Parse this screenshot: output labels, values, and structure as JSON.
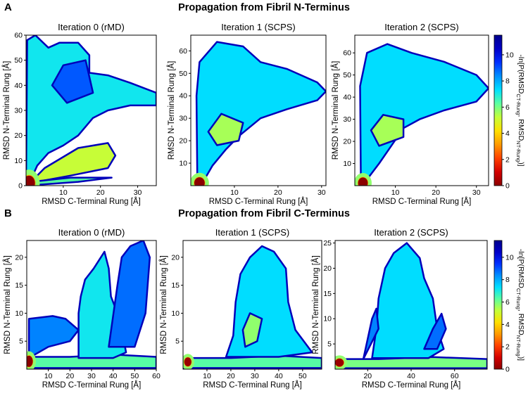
{
  "figure": {
    "rows": [
      {
        "label": "A",
        "title": "Propagation from Fibril N-Terminus"
      },
      {
        "label": "B",
        "title": "Propagation from Fibril C-Terminus"
      }
    ],
    "colorbar": {
      "label_parts": [
        "-ln[P(RMSD",
        "CT-Rung",
        ", RMSD",
        "NT-Rung",
        ")]"
      ],
      "ticks": [
        0,
        2,
        4,
        6,
        8,
        10
      ],
      "range": [
        0,
        11.5
      ],
      "colors": [
        "#8b0000",
        "#d40000",
        "#ff4000",
        "#ff9a00",
        "#ffe000",
        "#c4ff3a",
        "#5cffa0",
        "#00e0ff",
        "#0090ff",
        "#0030ff",
        "#0000c8",
        "#00008b"
      ]
    }
  },
  "chart_data": [
    {
      "type": "heatmap",
      "row": "A",
      "title": "Iteration 0 (rMD)",
      "xlabel": "RMSD C-Terminal Rung [Å]",
      "ylabel": "RMSD N-Terminal Rung [Å]",
      "xlim": [
        0,
        35
      ],
      "ylim": [
        0,
        60
      ],
      "xticks": [
        10,
        20,
        30
      ],
      "yticks": [
        0,
        10,
        20,
        30,
        40,
        50,
        60
      ],
      "regions": [
        {
          "kind": "wedge",
          "points": [
            [
              0,
              0
            ],
            [
              0.3,
              58
            ],
            [
              2.5,
              60
            ],
            [
              6,
              55
            ],
            [
              9,
              57
            ],
            [
              14,
              57
            ],
            [
              17,
              52
            ],
            [
              17,
              45
            ],
            [
              22,
              44
            ],
            [
              28,
              41
            ],
            [
              35,
              37
            ],
            [
              35,
              32
            ],
            [
              28,
              32
            ],
            [
              22,
              30
            ],
            [
              18,
              27
            ],
            [
              14,
              20
            ],
            [
              10,
              16
            ],
            [
              6,
              13
            ],
            [
              3,
              8
            ],
            [
              1.5,
              3
            ]
          ],
          "density": 0.62
        },
        {
          "kind": "arm",
          "points": [
            [
              1,
              1
            ],
            [
              12,
              4
            ],
            [
              22,
              7
            ],
            [
              24,
              12
            ],
            [
              22,
              17
            ],
            [
              14,
              15
            ],
            [
              5,
              7
            ]
          ],
          "density": 0.45
        },
        {
          "kind": "floor",
          "points": [
            [
              0,
              0
            ],
            [
              14,
              1.5
            ],
            [
              23,
              3.2
            ],
            [
              12,
              3.2
            ],
            [
              3,
              1.8
            ]
          ],
          "density": 0.55
        },
        {
          "kind": "cluster",
          "points": [
            [
              11,
              33
            ],
            [
              18,
              37
            ],
            [
              16,
              50
            ],
            [
              10,
              48
            ],
            [
              7,
              40
            ]
          ],
          "density": 0.78
        },
        {
          "kind": "hot",
          "center": [
            0.8,
            1.0
          ],
          "radius": [
            1.6,
            3.0
          ],
          "value": 0.0
        }
      ]
    },
    {
      "type": "heatmap",
      "row": "A",
      "title": "Iteration 1 (SCPS)",
      "xlabel": "RMSD C-Terminal Rung [Å]",
      "ylabel": "RMSD N-Terminal Rung [Å]",
      "xlim": [
        0,
        31
      ],
      "ylim": [
        0,
        67
      ],
      "xticks": [
        10,
        20,
        30
      ],
      "yticks": [
        10,
        20,
        30,
        40,
        50,
        60
      ],
      "regions": [
        {
          "kind": "wedge",
          "points": [
            [
              1.5,
              2
            ],
            [
              1.3,
              40
            ],
            [
              2,
              55
            ],
            [
              6,
              64
            ],
            [
              12,
              62
            ],
            [
              16,
              55
            ],
            [
              22,
              52
            ],
            [
              29,
              46
            ],
            [
              31,
              42
            ],
            [
              29,
              38
            ],
            [
              22,
              34
            ],
            [
              16,
              30
            ],
            [
              11,
              22
            ],
            [
              8,
              16
            ],
            [
              5,
              9
            ],
            [
              3.5,
              4
            ]
          ],
          "density": 0.64
        },
        {
          "kind": "cluster",
          "points": [
            [
              6,
              18
            ],
            [
              11,
              20
            ],
            [
              12,
              28
            ],
            [
              7,
              32
            ],
            [
              4,
              24
            ]
          ],
          "density": 0.48
        },
        {
          "kind": "hot",
          "center": [
            2.0,
            1.2
          ],
          "radius": [
            1.2,
            2.5
          ],
          "value": 0.0
        }
      ]
    },
    {
      "type": "heatmap",
      "row": "A",
      "title": "Iteration 2 (SCPS)",
      "xlabel": "RMSD C-Terminal Rung [Å]",
      "ylabel": "RMSD N-Terminal Rung [Å]",
      "xlim": [
        0,
        33
      ],
      "ylim": [
        0,
        68
      ],
      "xticks": [
        10,
        20,
        30
      ],
      "yticks": [
        10,
        20,
        30,
        40,
        50,
        60
      ],
      "regions": [
        {
          "kind": "wedge",
          "points": [
            [
              1.5,
              2
            ],
            [
              1.3,
              45
            ],
            [
              3,
              60
            ],
            [
              8,
              64
            ],
            [
              14,
              60
            ],
            [
              22,
              56
            ],
            [
              30,
              50
            ],
            [
              33,
              44
            ],
            [
              30,
              38
            ],
            [
              22,
              34
            ],
            [
              16,
              30
            ],
            [
              12,
              26
            ],
            [
              9,
              18
            ],
            [
              6,
              10
            ],
            [
              3.5,
              4
            ]
          ],
          "density": 0.64
        },
        {
          "kind": "cluster",
          "points": [
            [
              6,
              18
            ],
            [
              12,
              22
            ],
            [
              12,
              30
            ],
            [
              7,
              32
            ],
            [
              4,
              25
            ]
          ],
          "density": 0.48
        },
        {
          "kind": "hot",
          "center": [
            2.0,
            1.2
          ],
          "radius": [
            1.2,
            2.5
          ],
          "value": 0.0
        }
      ]
    },
    {
      "type": "heatmap",
      "row": "B",
      "title": "Iteration 0 (rMD)",
      "xlabel": "RMSD C-Terminal Rung [Å]",
      "ylabel": "RMSD N-Terminal Rung [Å]",
      "xlim": [
        0,
        60
      ],
      "ylim": [
        0,
        23
      ],
      "xticks": [
        10,
        20,
        30,
        40,
        50,
        60
      ],
      "yticks": [
        5,
        10,
        15,
        20
      ],
      "regions": [
        {
          "kind": "floor",
          "points": [
            [
              0,
              0.2
            ],
            [
              60,
              0.2
            ],
            [
              60,
              2.2
            ],
            [
              40,
              2.6
            ],
            [
              20,
              2.2
            ],
            [
              0,
              2.2
            ]
          ],
          "density": 0.55
        },
        {
          "kind": "column",
          "points": [
            [
              24,
              2
            ],
            [
              24,
              10
            ],
            [
              25,
              13
            ],
            [
              27,
              16
            ],
            [
              31,
              18
            ],
            [
              36,
              21
            ],
            [
              38,
              18
            ],
            [
              39,
              13
            ],
            [
              42,
              10
            ],
            [
              44,
              7
            ],
            [
              46,
              3
            ],
            [
              40,
              2
            ]
          ],
          "density": 0.62
        },
        {
          "kind": "arm",
          "points": [
            [
              1,
              2
            ],
            [
              1,
              9
            ],
            [
              12,
              9.5
            ],
            [
              18,
              9
            ],
            [
              24,
              7
            ],
            [
              20,
              5
            ],
            [
              10,
              4
            ]
          ],
          "density": 0.74
        },
        {
          "kind": "arm",
          "points": [
            [
              38,
              4
            ],
            [
              42,
              15
            ],
            [
              44,
              20
            ],
            [
              48,
              22
            ],
            [
              54,
              23
            ],
            [
              57,
              20
            ],
            [
              55,
              10
            ],
            [
              50,
              4
            ]
          ],
          "density": 0.76
        },
        {
          "kind": "hot",
          "center": [
            1.0,
            1.4
          ],
          "radius": [
            1.8,
            1.0
          ],
          "value": 0.0
        }
      ]
    },
    {
      "type": "heatmap",
      "row": "B",
      "title": "Iteration 1 (SCPS)",
      "xlabel": "RMSD C-Terminal Rung [Å]",
      "ylabel": "RMSD N-Terminal Rung [Å]",
      "xlim": [
        0,
        58
      ],
      "ylim": [
        0,
        23
      ],
      "xticks": [
        10,
        20,
        30,
        40,
        50
      ],
      "yticks": [
        5,
        10,
        15,
        20
      ],
      "regions": [
        {
          "kind": "floor",
          "points": [
            [
              0,
              0.2
            ],
            [
              58,
              0.2
            ],
            [
              58,
              2.0
            ],
            [
              40,
              2.4
            ],
            [
              20,
              2.0
            ],
            [
              0,
              2.0
            ]
          ],
          "density": 0.55
        },
        {
          "kind": "column",
          "points": [
            [
              18,
              2.2
            ],
            [
              21,
              6
            ],
            [
              22,
              12
            ],
            [
              24,
              17
            ],
            [
              28,
              20
            ],
            [
              33,
              22
            ],
            [
              38,
              21
            ],
            [
              43,
              18
            ],
            [
              44,
              12
            ],
            [
              47,
              7
            ],
            [
              54,
              3
            ],
            [
              40,
              2.2
            ]
          ],
          "density": 0.64
        },
        {
          "kind": "cluster",
          "points": [
            [
              26,
              4
            ],
            [
              31,
              5
            ],
            [
              33,
              9
            ],
            [
              28,
              10
            ],
            [
              25,
              7
            ]
          ],
          "density": 0.5
        },
        {
          "kind": "hot",
          "center": [
            2.0,
            1.3
          ],
          "radius": [
            1.5,
            0.8
          ],
          "value": 0.02
        }
      ]
    },
    {
      "type": "heatmap",
      "row": "B",
      "title": "Iteration 2 (SCPS)",
      "xlabel": "RMSD C-Terminal Rung [Å]",
      "ylabel": "RMSD N-Terminal Rung [Å]",
      "xlim": [
        5,
        75
      ],
      "ylim": [
        0,
        25.5
      ],
      "xticks": [
        20,
        40,
        60
      ],
      "yticks": [
        5,
        10,
        15,
        20,
        25
      ],
      "regions": [
        {
          "kind": "floor",
          "points": [
            [
              5,
              0.2
            ],
            [
              75,
              0.2
            ],
            [
              75,
              2.0
            ],
            [
              50,
              2.4
            ],
            [
              25,
              2.0
            ],
            [
              5,
              2.0
            ]
          ],
          "density": 0.52
        },
        {
          "kind": "column",
          "points": [
            [
              22,
              2.2
            ],
            [
              24,
              8
            ],
            [
              25,
              14
            ],
            [
              28,
              20
            ],
            [
              32,
              23
            ],
            [
              38,
              25
            ],
            [
              44,
              22
            ],
            [
              46,
              18
            ],
            [
              50,
              14
            ],
            [
              52,
              8
            ],
            [
              55,
              4
            ],
            [
              48,
              2.2
            ]
          ],
          "density": 0.64
        },
        {
          "kind": "arm",
          "points": [
            [
              18,
              2
            ],
            [
              20,
              6
            ],
            [
              22,
              10
            ],
            [
              24,
              12
            ],
            [
              25,
              8
            ]
          ],
          "density": 0.74
        },
        {
          "kind": "arm",
          "points": [
            [
              46,
              4
            ],
            [
              50,
              8
            ],
            [
              54,
              11
            ],
            [
              56,
              8
            ],
            [
              52,
              4
            ]
          ],
          "density": 0.76
        },
        {
          "kind": "hot",
          "center": [
            7.0,
            1.3
          ],
          "radius": [
            2.0,
            0.8
          ],
          "value": 0.02
        }
      ]
    }
  ]
}
